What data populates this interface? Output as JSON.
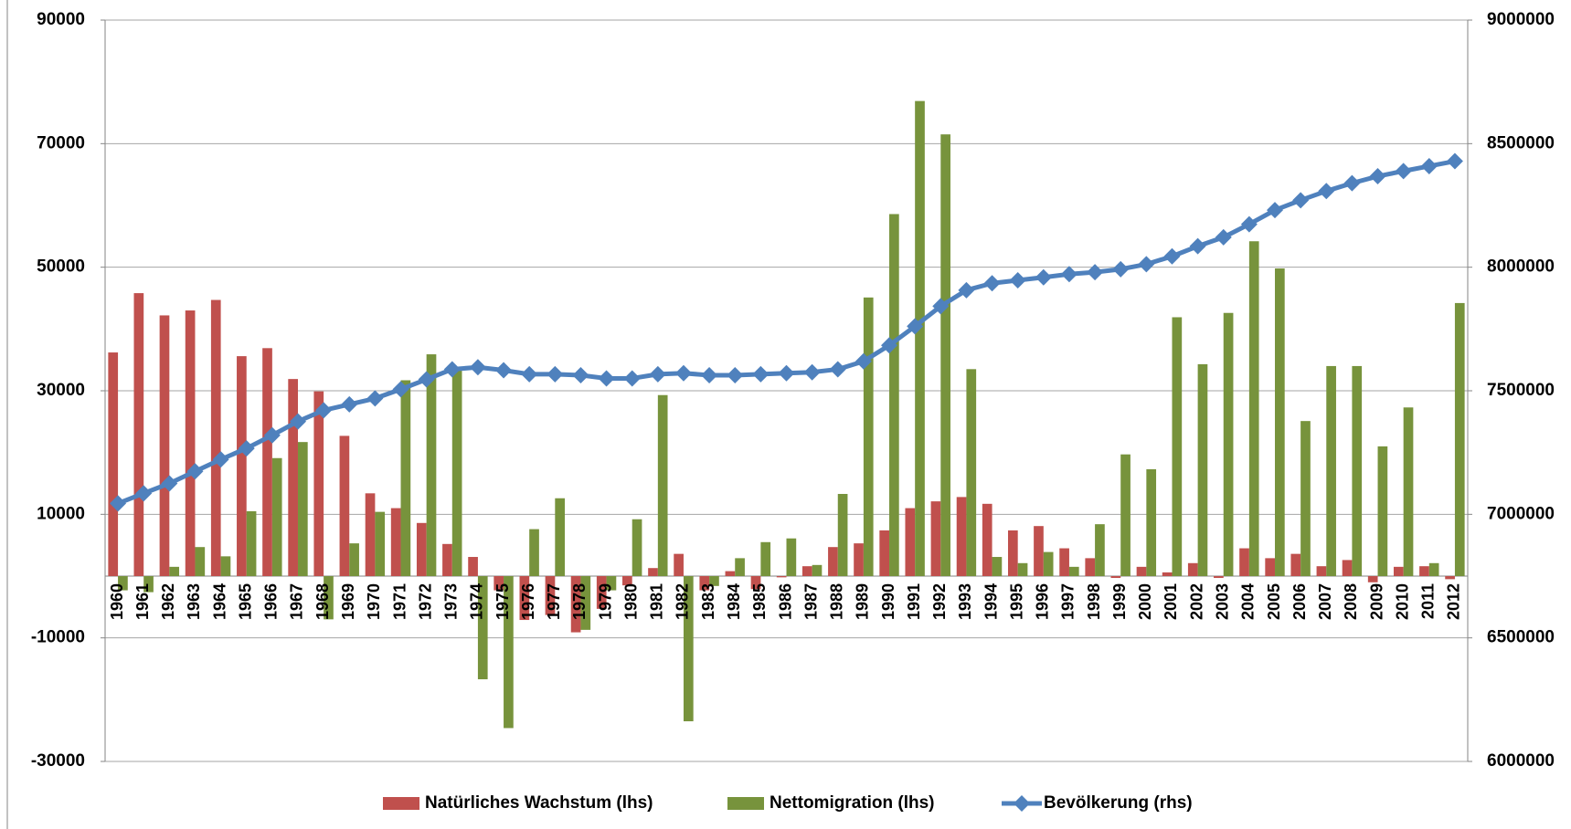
{
  "chart_data": {
    "type": "bar",
    "categories": [
      "1960",
      "1961",
      "1962",
      "1963",
      "1964",
      "1965",
      "1966",
      "1967",
      "1968",
      "1969",
      "1970",
      "1971",
      "1972",
      "1973",
      "1974",
      "1975",
      "1976",
      "1977",
      "1978",
      "1979",
      "1980",
      "1981",
      "1982",
      "1983",
      "1984",
      "1985",
      "1986",
      "1987",
      "1988",
      "1989",
      "1990",
      "1991",
      "1992",
      "1993",
      "1994",
      "1995",
      "1996",
      "1997",
      "1998",
      "1999",
      "2000",
      "2001",
      "2002",
      "2003",
      "2004",
      "2005",
      "2006",
      "2007",
      "2008",
      "2009",
      "2010",
      "2011",
      "2012"
    ],
    "series": [
      {
        "name": "Natürliches Wachstum (lhs)",
        "color": "#c0504d",
        "type": "bar",
        "axis": "y",
        "values": [
          36200,
          45800,
          42200,
          43000,
          44700,
          35600,
          36900,
          31900,
          29900,
          22700,
          13400,
          11000,
          8600,
          5200,
          3100,
          -2300,
          -7100,
          -6300,
          -9100,
          -5300,
          -1500,
          1300,
          3600,
          -2300,
          800,
          -2100,
          -200,
          1600,
          4700,
          5300,
          7400,
          11000,
          12100,
          12800,
          11700,
          7400,
          8100,
          4500,
          2900,
          -300,
          1500,
          600,
          2100,
          -300,
          4500,
          2900,
          3600,
          1600,
          2600,
          -1000,
          1500,
          1600,
          -500
        ]
      },
      {
        "name": "Nettomigration (lhs)",
        "color": "#77933c",
        "type": "bar",
        "axis": "y",
        "values": [
          -2300,
          -2600,
          1500,
          4700,
          3200,
          10500,
          19100,
          21700,
          -7000,
          5300,
          10400,
          31700,
          35900,
          33300,
          -16700,
          -24600,
          7600,
          12600,
          -8700,
          -2300,
          9200,
          29300,
          -23500,
          -1600,
          2900,
          5500,
          6100,
          1800,
          13300,
          45100,
          58600,
          76900,
          71500,
          33500,
          3100,
          2100,
          3900,
          1500,
          8400,
          19700,
          17300,
          41900,
          34300,
          42600,
          54200,
          49800,
          25100,
          34000,
          34000,
          21000,
          27300,
          2100,
          44200
        ]
      },
      {
        "name": "Bevölkerung (rhs)",
        "color": "#4f81bd",
        "type": "line",
        "axis": "y2",
        "values": [
          7044000,
          7085000,
          7125000,
          7174000,
          7222000,
          7267000,
          7320000,
          7376000,
          7421000,
          7445000,
          7469000,
          7506000,
          7546000,
          7587000,
          7595000,
          7583000,
          7567000,
          7567000,
          7563000,
          7550000,
          7550000,
          7567000,
          7571000,
          7563000,
          7563000,
          7567000,
          7571000,
          7575000,
          7587000,
          7619000,
          7684000,
          7761000,
          7842000,
          7907000,
          7935000,
          7947000,
          7959000,
          7972000,
          7980000,
          7992000,
          8012000,
          8044000,
          8085000,
          8121000,
          8174000,
          8231000,
          8271000,
          8308000,
          8340000,
          8368000,
          8389000,
          8409000,
          8429000
        ]
      }
    ],
    "ylim": [
      -30000,
      90000
    ],
    "yticks": [
      -30000,
      -10000,
      10000,
      30000,
      50000,
      70000,
      90000
    ],
    "y2lim": [
      6000000,
      9000000
    ],
    "y2ticks": [
      6000000,
      6500000,
      7000000,
      7500000,
      8000000,
      8500000,
      9000000
    ],
    "grid": true,
    "legend": "bottom"
  }
}
